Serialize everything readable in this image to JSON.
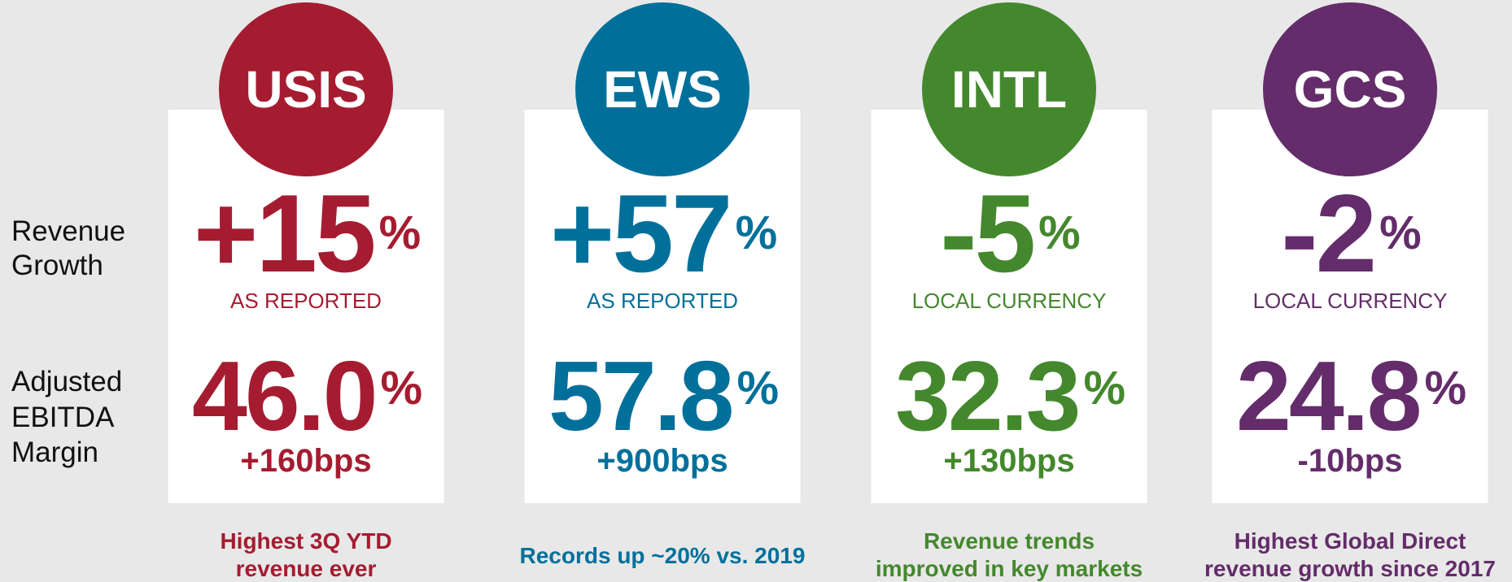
{
  "row_labels": {
    "revenue": [
      "Revenue",
      "Growth"
    ],
    "margin": [
      "Adjusted",
      "EBITDA",
      "Margin"
    ]
  },
  "unit": "%",
  "segments": [
    {
      "name": "USIS",
      "color": "#a51c30",
      "revenue_growth": "+15",
      "revenue_basis": "AS REPORTED",
      "margin": "46.0",
      "margin_change": "+160bps",
      "note": [
        "Highest 3Q YTD",
        "revenue ever"
      ]
    },
    {
      "name": "EWS",
      "color": "#00709b",
      "revenue_growth": "+57",
      "revenue_basis": "AS REPORTED",
      "margin": "57.8",
      "margin_change": "+900bps",
      "note": [
        "Records up ~20% vs. 2019"
      ]
    },
    {
      "name": "INTL",
      "color": "#44882d",
      "revenue_growth": "-5",
      "revenue_basis": "LOCAL CURRENCY",
      "margin": "32.3",
      "margin_change": "+130bps",
      "note": [
        "Revenue trends",
        "improved in key markets"
      ]
    },
    {
      "name": "GCS",
      "color": "#642c6a",
      "revenue_growth": "-2",
      "revenue_basis": "LOCAL CURRENCY",
      "margin": "24.8",
      "margin_change": "-10bps",
      "note": [
        "Highest Global Direct",
        "revenue growth since 2017"
      ]
    }
  ]
}
